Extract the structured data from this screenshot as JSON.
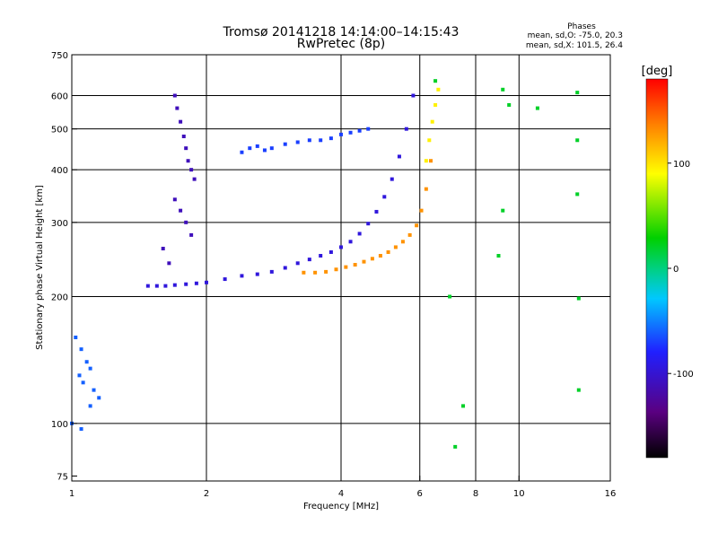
{
  "chart_data": {
    "type": "scatter",
    "title": "Tromsø 20141218 14:14:00–14:15:43",
    "subtitle": "RwPretec (8p)",
    "xlabel": "Frequency [MHz]",
    "ylabel": "Stationary phase Virtual Height [km]",
    "x_scale": "log",
    "y_scale": "log",
    "xlim": [
      1,
      16
    ],
    "ylim": [
      73,
      750
    ],
    "x_ticks": [
      1,
      2,
      4,
      6,
      8,
      10,
      16
    ],
    "y_ticks": [
      75,
      100,
      200,
      300,
      400,
      500,
      600,
      750
    ],
    "x_gridlines": [
      2,
      4,
      6,
      8,
      10
    ],
    "y_gridlines": [
      100,
      200,
      300,
      400,
      500,
      600
    ],
    "grid": true,
    "phase_stats": {
      "heading": "Phases",
      "line_o": "mean, sd,O: -75.0, 20.3",
      "line_x": "mean, sd,X: 101.5, 26.4"
    },
    "colorbar": {
      "label": "[deg]",
      "range": [
        -180,
        180
      ],
      "ticks": [
        100,
        0,
        -100
      ],
      "colormap": "rainbow",
      "colors": [
        "#000000",
        "#5a0080",
        "#2020ff",
        "#00c8ff",
        "#00d080",
        "#00d000",
        "#ffff00",
        "#ff8000",
        "#ff0000"
      ]
    },
    "series": [
      {
        "kind": "o-mode trace",
        "phase_deg": -95,
        "x": [
          1.48,
          1.55,
          1.62,
          1.7,
          1.8,
          1.9,
          2.0,
          2.2,
          2.4,
          2.6,
          2.8,
          3.0,
          3.2,
          3.4,
          3.6,
          3.8,
          4.0,
          4.2,
          4.4,
          4.6,
          4.8,
          5.0,
          5.2,
          5.4,
          5.6,
          5.8
        ],
        "y": [
          212,
          212,
          212,
          213,
          214,
          215,
          216,
          220,
          224,
          226,
          229,
          234,
          240,
          245,
          250,
          255,
          262,
          270,
          282,
          298,
          318,
          345,
          380,
          430,
          500,
          600
        ]
      },
      {
        "kind": "x-mode trace",
        "phase_deg": 130,
        "x": [
          3.3,
          3.5,
          3.7,
          3.9,
          4.1,
          4.3,
          4.5,
          4.7,
          4.9,
          5.1,
          5.3,
          5.5,
          5.7,
          5.9,
          6.05,
          6.2,
          6.35
        ],
        "y": [
          228,
          228,
          229,
          232,
          235,
          238,
          242,
          246,
          250,
          255,
          262,
          270,
          280,
          295,
          320,
          360,
          420
        ]
      },
      {
        "kind": "x-mode upper branch",
        "phase_deg": 95,
        "x": [
          6.2,
          6.3,
          6.4,
          6.5,
          6.6
        ],
        "y": [
          420,
          470,
          520,
          570,
          620
        ]
      },
      {
        "kind": "spread echoes",
        "phase_deg": -110,
        "x": [
          1.7,
          1.72,
          1.75,
          1.78,
          1.8,
          1.82,
          1.85,
          1.88,
          1.7,
          1.75,
          1.8,
          1.85,
          1.6,
          1.65
        ],
        "y": [
          600,
          560,
          520,
          480,
          450,
          420,
          400,
          380,
          340,
          320,
          300,
          280,
          260,
          240
        ]
      },
      {
        "kind": "multi-hop echoes",
        "phase_deg": -70,
        "x": [
          2.4,
          2.5,
          2.6,
          2.7,
          2.8,
          3.0,
          3.2,
          3.4,
          3.6,
          3.8,
          4.0,
          4.2,
          4.4,
          4.6
        ],
        "y": [
          440,
          450,
          455,
          445,
          450,
          460,
          465,
          470,
          470,
          475,
          485,
          490,
          495,
          500
        ]
      },
      {
        "kind": "low-altitude echoes",
        "phase_deg": -60,
        "x": [
          1.02,
          1.05,
          1.08,
          1.1,
          1.04,
          1.06,
          1.12,
          1.15,
          1.0,
          1.05,
          1.1
        ],
        "y": [
          160,
          150,
          140,
          135,
          130,
          125,
          120,
          115,
          100,
          97,
          110
        ]
      },
      {
        "kind": "scattered points",
        "phase_deg": 20,
        "x": [
          6.5,
          7.0,
          7.2,
          9.2,
          9.5,
          11.0,
          13.5,
          13.5,
          13.5,
          13.6,
          13.6,
          9.0,
          9.2,
          7.5
        ],
        "y": [
          650,
          200,
          88,
          620,
          570,
          560,
          610,
          470,
          350,
          198,
          120,
          250,
          320,
          110
        ]
      }
    ]
  }
}
